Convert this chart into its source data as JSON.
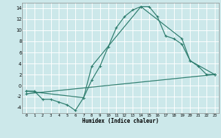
{
  "xlabel": "Humidex (Indice chaleur)",
  "bg_color": "#cce8ea",
  "grid_color": "#ffffff",
  "line_color": "#2e7d6e",
  "xlim": [
    -0.5,
    23.5
  ],
  "ylim": [
    -5,
    15
  ],
  "xticks": [
    0,
    1,
    2,
    3,
    4,
    5,
    6,
    7,
    8,
    9,
    10,
    11,
    12,
    13,
    14,
    15,
    16,
    17,
    18,
    19,
    20,
    21,
    22,
    23
  ],
  "yticks": [
    -4,
    -2,
    0,
    2,
    4,
    6,
    8,
    10,
    12,
    14
  ],
  "curve1_x": [
    0,
    1,
    2,
    3,
    4,
    5,
    6,
    7,
    8,
    9,
    10,
    11,
    12,
    13,
    14,
    15,
    16,
    17,
    18,
    19,
    20,
    21,
    22,
    23
  ],
  "curve1_y": [
    -1,
    -1,
    -2.5,
    -2.5,
    -3.0,
    -3.5,
    -4.5,
    -2.2,
    1.0,
    3.5,
    7.0,
    10.5,
    12.5,
    13.7,
    14.3,
    14.3,
    12.5,
    9.0,
    8.5,
    7.5,
    4.5,
    3.5,
    2.0,
    2.0
  ],
  "curve2_x": [
    0,
    7,
    8,
    14,
    19,
    20,
    23
  ],
  "curve2_y": [
    -1,
    -2.2,
    3.5,
    14.3,
    8.5,
    4.5,
    2.0
  ],
  "curve3_x": [
    0,
    23
  ],
  "curve3_y": [
    -1.5,
    2.0
  ]
}
